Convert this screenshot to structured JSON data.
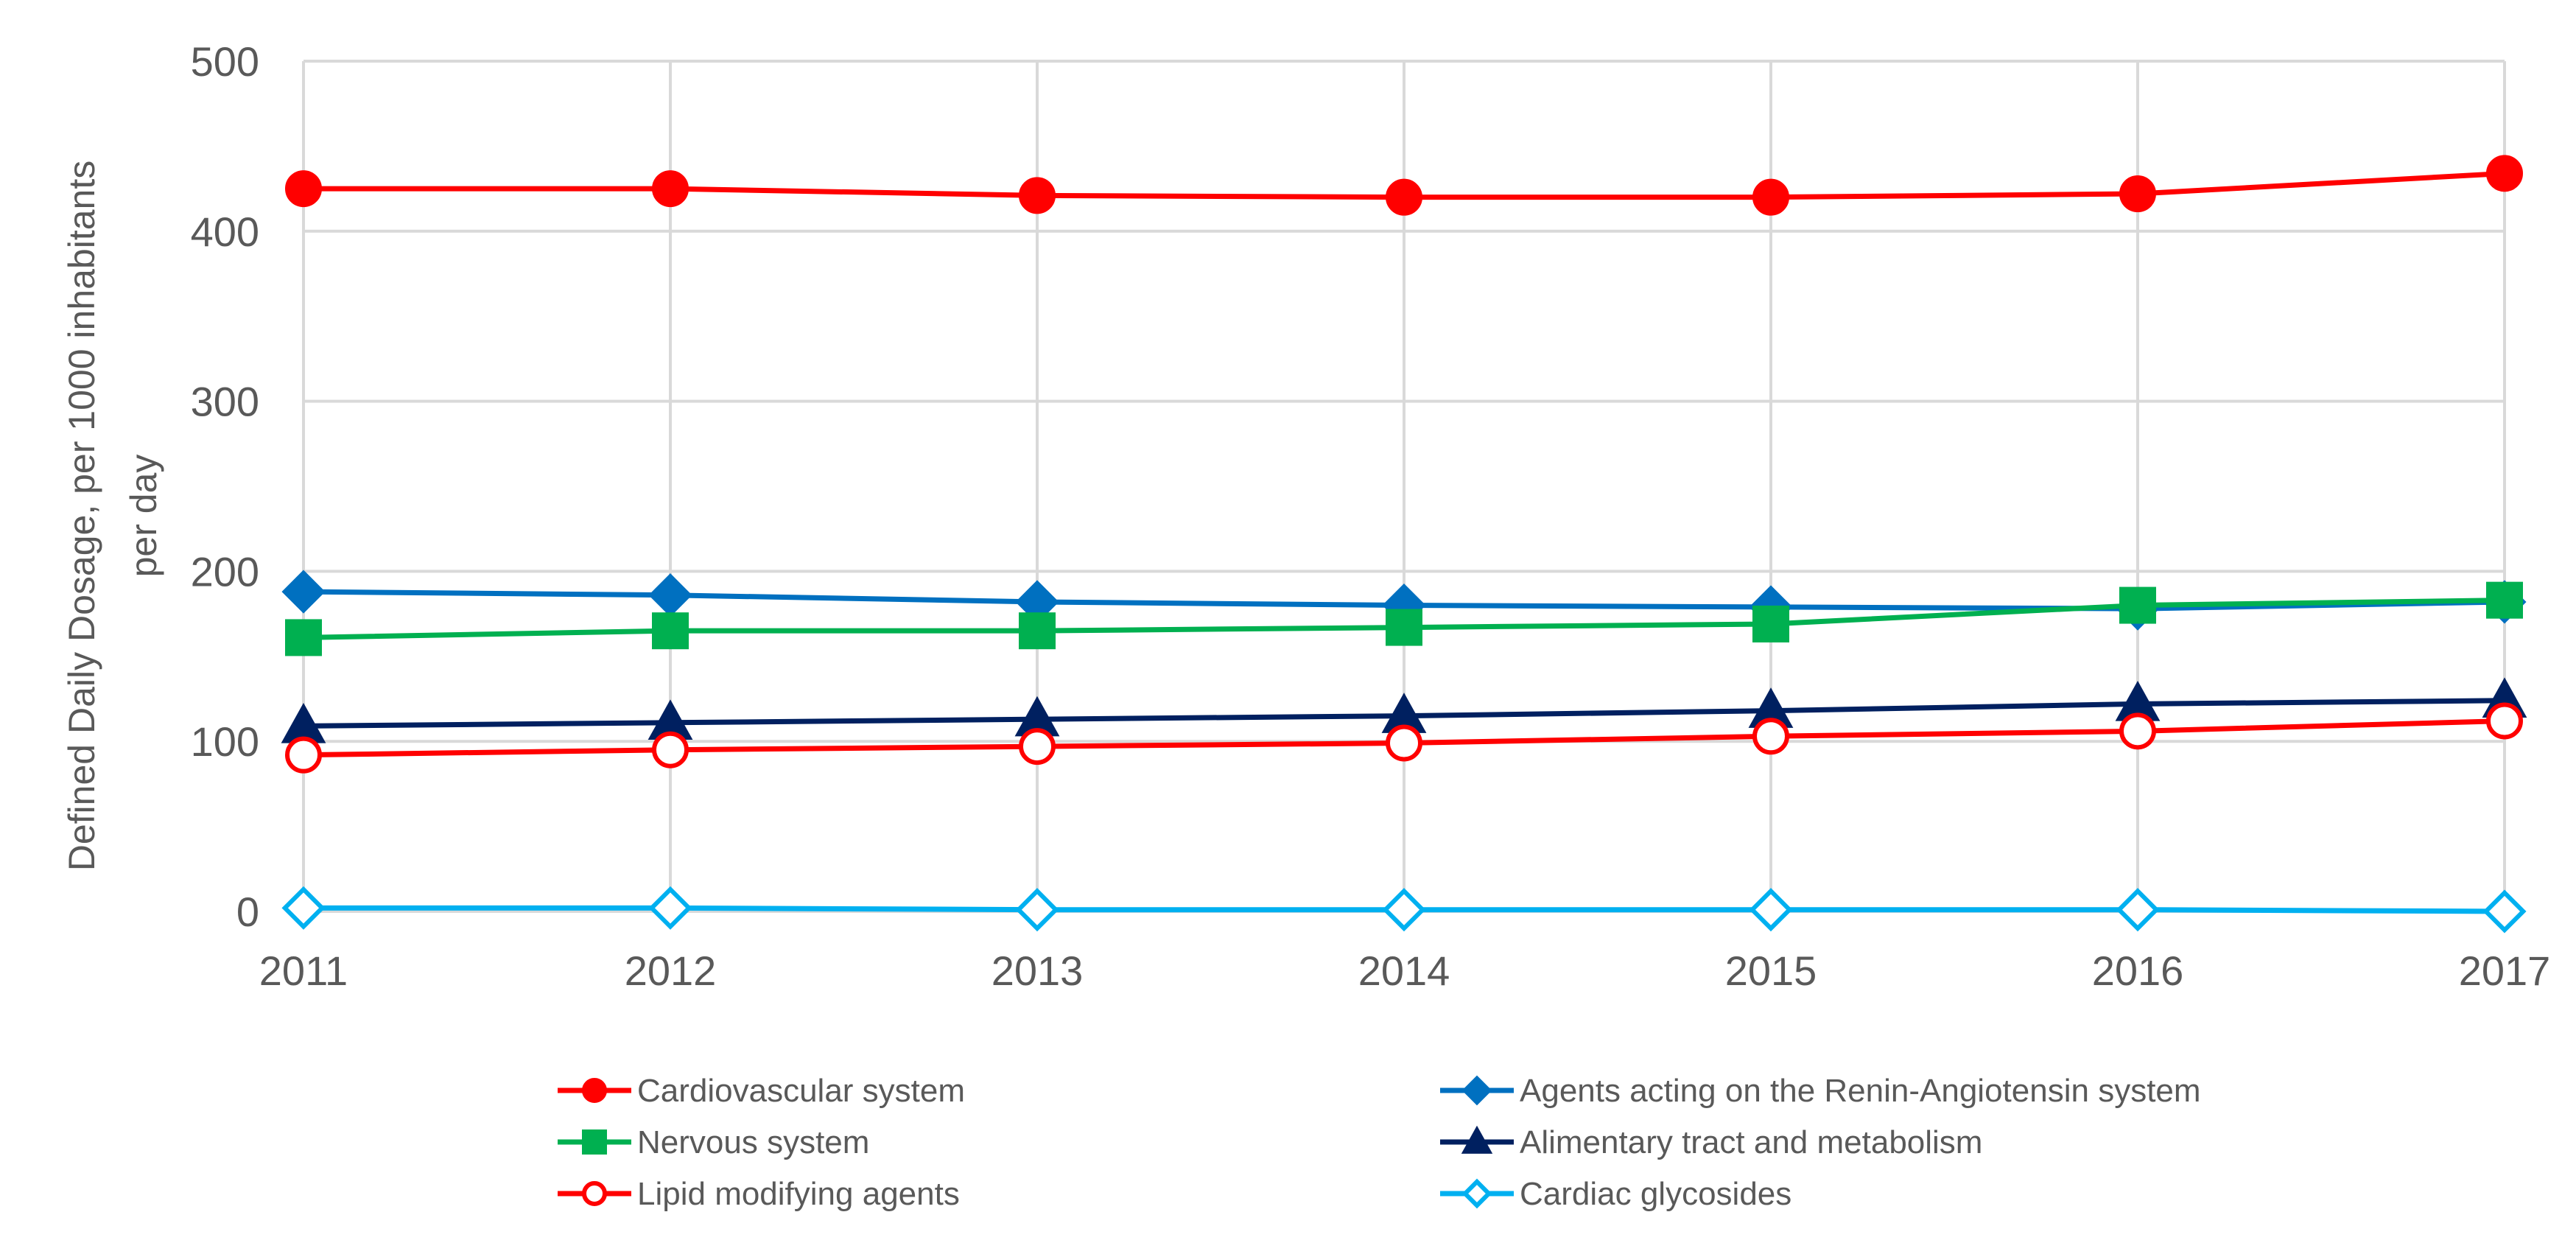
{
  "chart_data": {
    "type": "line",
    "title": "",
    "xlabel": "",
    "ylabel_lines": [
      "Defined Daily Dosage, per 1000 inhabitants",
      "per day"
    ],
    "x": [
      "2011",
      "2012",
      "2013",
      "2014",
      "2015",
      "2016",
      "2017"
    ],
    "ylim": [
      0,
      500
    ],
    "yticks": [
      "0",
      "100",
      "200",
      "300",
      "400",
      "500"
    ],
    "grid": true,
    "legend_position": "bottom",
    "series": [
      {
        "name": "Cardiovascular system",
        "color": "#ff0000",
        "marker": "circle",
        "filled": true,
        "values": [
          425,
          425,
          421,
          420,
          420,
          422,
          434
        ]
      },
      {
        "name": "Agents acting on the Renin-Angiotensin system",
        "color": "#0070c0",
        "marker": "diamond",
        "filled": true,
        "values": [
          188,
          186,
          182,
          180,
          179,
          178,
          182
        ]
      },
      {
        "name": "Nervous system",
        "color": "#00b050",
        "marker": "square",
        "filled": true,
        "values": [
          161,
          165,
          165,
          167,
          169,
          180,
          183
        ]
      },
      {
        "name": "Alimentary tract and metabolism",
        "color": "#002060",
        "marker": "triangle",
        "filled": true,
        "values": [
          109,
          111,
          113,
          115,
          118,
          122,
          124
        ]
      },
      {
        "name": "Lipid modifying agents",
        "color": "#ff0000",
        "marker": "circle",
        "filled": false,
        "values": [
          92,
          95,
          97,
          99,
          103,
          106,
          112
        ]
      },
      {
        "name": "Cardiac glycosides",
        "color": "#00b0f0",
        "marker": "diamond",
        "filled": false,
        "values": [
          2,
          2,
          1,
          1,
          1,
          1,
          0
        ]
      }
    ]
  }
}
